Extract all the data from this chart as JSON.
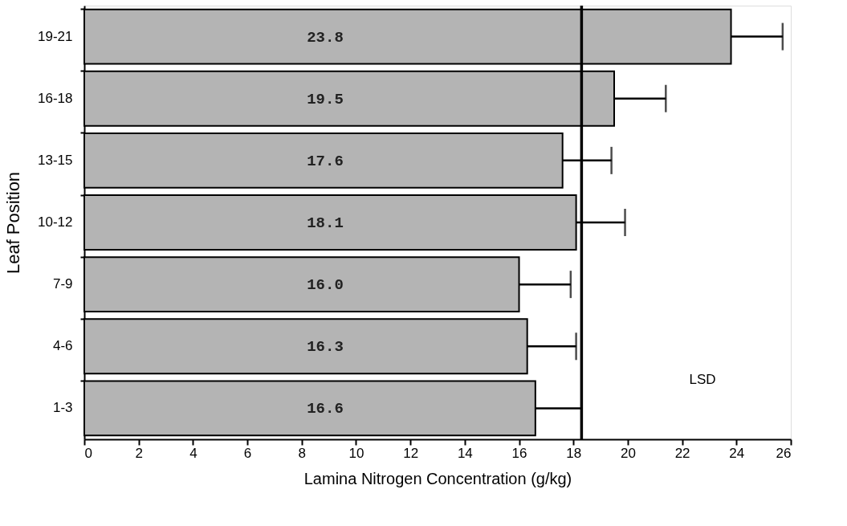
{
  "chart_data": {
    "type": "bar",
    "orientation": "horizontal",
    "xlabel": "Lamina Nitrogen Concentration (g/kg)",
    "ylabel": "Leaf Position",
    "categories": [
      "19-21",
      "16-18",
      "13-15",
      "10-12",
      "7-9",
      "4-6",
      "1-3"
    ],
    "values": [
      23.8,
      19.5,
      17.6,
      18.1,
      16.0,
      16.3,
      16.6
    ],
    "value_labels": [
      "23.8",
      "19.5",
      "17.6",
      "18.1",
      "16.0",
      "16.3",
      "16.6"
    ],
    "errors": [
      [
        23.8,
        25.7
      ],
      [
        19.5,
        21.4
      ],
      [
        17.6,
        19.4
      ],
      [
        18.1,
        19.9
      ],
      [
        16.0,
        17.9
      ],
      [
        16.3,
        18.1
      ],
      [
        16.6,
        18.3
      ]
    ],
    "color": "#b4b4b4",
    "xlim": [
      0,
      26
    ],
    "xticks": [
      0,
      2,
      4,
      6,
      8,
      10,
      12,
      14,
      16,
      18,
      20,
      22,
      24,
      26
    ],
    "ref_lines": [
      {
        "axis": "x",
        "value": 18.3
      }
    ],
    "annotations": [
      "LSD"
    ],
    "grid": false
  }
}
